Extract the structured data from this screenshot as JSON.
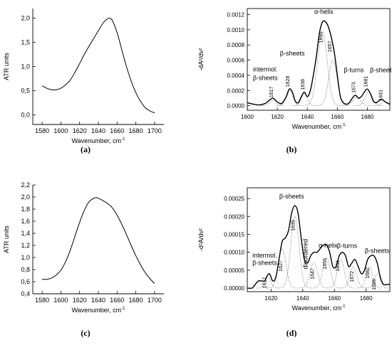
{
  "chart_data": [
    {
      "panel": "(a)",
      "type": "line",
      "xlabel": "Wavenumber, cm",
      "xlabel_sup": "-1",
      "ylabel": "ATR units",
      "xlim": [
        1570,
        1710
      ],
      "ylim": [
        -0.2,
        2.2
      ],
      "xticks": [
        1580,
        1600,
        1620,
        1640,
        1660,
        1680,
        1700
      ],
      "yticks": [
        0.0,
        0.5,
        1.0,
        1.5,
        2.0
      ],
      "ytick_labels": [
        "0,0",
        "0,5",
        "1,0",
        "1,5",
        "2,0"
      ],
      "series": [
        {
          "style": "solid",
          "x": [
            1580,
            1585,
            1590,
            1595,
            1600,
            1605,
            1610,
            1615,
            1620,
            1625,
            1630,
            1635,
            1640,
            1645,
            1650,
            1652,
            1655,
            1660,
            1665,
            1670,
            1675,
            1680,
            1685,
            1690,
            1695,
            1700
          ],
          "y": [
            0.6,
            0.55,
            0.52,
            0.52,
            0.55,
            0.62,
            0.72,
            0.88,
            1.06,
            1.25,
            1.42,
            1.58,
            1.74,
            1.9,
            1.99,
            2.0,
            1.95,
            1.7,
            1.35,
            1.0,
            0.7,
            0.46,
            0.28,
            0.15,
            0.08,
            0.04
          ]
        }
      ]
    },
    {
      "panel": "(b)",
      "type": "line",
      "xlabel": "Wavenumber, cm",
      "xlabel_sup": "-1",
      "ylabel": "-dA²/dν²",
      "xlim": [
        1600,
        1695
      ],
      "ylim": [
        -6e-05,
        0.00128
      ],
      "xticks": [
        1600,
        1620,
        1640,
        1660,
        1680
      ],
      "yticks": [
        0.0,
        0.0002,
        0.0004,
        0.0006,
        0.0008,
        0.001,
        0.0012
      ],
      "ytick_labels": [
        "0.0000",
        "0.0002",
        "0.0004",
        "0.0006",
        "0.0008",
        "0.0010",
        "0.0012"
      ],
      "series": [
        {
          "style": "solid",
          "x": [
            1600,
            1604,
            1608,
            1612,
            1614,
            1617,
            1620,
            1623,
            1626,
            1628,
            1630,
            1632,
            1634,
            1636,
            1638,
            1640,
            1642,
            1644,
            1646,
            1648,
            1650,
            1652,
            1654,
            1656,
            1658,
            1660,
            1662,
            1664,
            1666,
            1668,
            1670,
            1672,
            1674,
            1676,
            1678,
            1680,
            1682,
            1684,
            1686,
            1688,
            1690,
            1692,
            1695
          ],
          "y": [
            4e-05,
            2e-05,
            1e-05,
            3e-05,
            6e-05,
            0.0001,
            5e-05,
            3e-05,
            0.00012,
            0.00022,
            0.00018,
            6e-05,
            4e-05,
            0.00012,
            0.00018,
            0.00012,
            0.0002,
            0.0004,
            0.00065,
            0.00095,
            0.0011,
            0.00111,
            0.00104,
            0.0009,
            0.0007,
            0.0004,
            0.00012,
            4e-05,
            2e-05,
            4e-05,
            0.0001,
            0.00014,
            0.0001,
            0.00012,
            0.00018,
            0.00022,
            0.00016,
            6e-05,
            4e-05,
            7e-05,
            8e-05,
            5e-05,
            2e-05
          ]
        }
      ],
      "component_peaks": [
        {
          "center": 1617,
          "height": 7e-05,
          "sigma": 2.0
        },
        {
          "center": 1628,
          "height": 0.00021,
          "sigma": 2.2
        },
        {
          "center": 1638,
          "height": 0.00016,
          "sigma": 2.0
        },
        {
          "center": 1650,
          "height": 0.00098,
          "sigma": 3.2
        },
        {
          "center": 1657,
          "height": 0.0006,
          "sigma": 2.8
        },
        {
          "center": 1673,
          "height": 0.00012,
          "sigma": 2.5
        },
        {
          "center": 1681,
          "height": 0.00018,
          "sigma": 2.5
        },
        {
          "center": 1691,
          "height": 6e-05,
          "sigma": 1.8
        }
      ],
      "peak_labels": [
        {
          "text": "1617",
          "x": 1617,
          "y": 0.00018
        },
        {
          "text": "1628",
          "x": 1628,
          "y": 0.00032
        },
        {
          "text": "1638",
          "x": 1638,
          "y": 0.00028
        },
        {
          "text": "1650",
          "x": 1650,
          "y": 0.0009
        },
        {
          "text": "1657",
          "x": 1656,
          "y": 0.00078
        },
        {
          "text": "1673",
          "x": 1672,
          "y": 0.00024
        },
        {
          "text": "1681",
          "x": 1680,
          "y": 0.00032
        },
        {
          "text": "1691",
          "x": 1690,
          "y": 0.00014
        }
      ],
      "annotations": [
        {
          "text": "α-helix",
          "x": 1651,
          "y": 0.00121
        },
        {
          "text": "β-sheets",
          "x": 1630,
          "y": 0.00066
        },
        {
          "text": "β-turns",
          "x": 1671,
          "y": 0.00044
        },
        {
          "text": "β-sheets",
          "x": 1690,
          "y": 0.00044
        },
        {
          "text": "intermol.",
          "x": 1612,
          "y": 0.00045
        },
        {
          "text": "β-sheets",
          "x": 1612,
          "y": 0.00034
        }
      ]
    },
    {
      "panel": "(c)",
      "type": "line",
      "xlabel": "Wavenumber, cm",
      "xlabel_sup": "-1",
      "ylabel": "ATR units",
      "xlim": [
        1570,
        1710
      ],
      "ylim": [
        0.4,
        2.2
      ],
      "xticks": [
        1580,
        1600,
        1620,
        1640,
        1660,
        1680,
        1700
      ],
      "yticks": [
        0.4,
        0.6,
        0.8,
        1.0,
        1.2,
        1.4,
        1.6,
        1.8,
        2.0,
        2.2
      ],
      "ytick_labels": [
        "0,4",
        "0,6",
        "0,8",
        "1,0",
        "1,2",
        "1,4",
        "1,6",
        "1,8",
        "2,0",
        "2,2"
      ],
      "series": [
        {
          "style": "solid",
          "x": [
            1580,
            1585,
            1590,
            1595,
            1600,
            1605,
            1610,
            1615,
            1620,
            1625,
            1630,
            1635,
            1638,
            1640,
            1645,
            1650,
            1655,
            1660,
            1665,
            1670,
            1675,
            1680,
            1685,
            1690,
            1695,
            1700
          ],
          "y": [
            0.64,
            0.64,
            0.66,
            0.71,
            0.79,
            0.93,
            1.12,
            1.35,
            1.58,
            1.78,
            1.92,
            1.98,
            1.99,
            1.98,
            1.94,
            1.89,
            1.82,
            1.7,
            1.55,
            1.38,
            1.2,
            1.03,
            0.88,
            0.75,
            0.65,
            0.57
          ]
        }
      ]
    },
    {
      "panel": "(d)",
      "type": "line",
      "xlabel": "Wavenumber, cm",
      "xlabel_sup": "-1",
      "ylabel": "-d²A/dν²",
      "xlim": [
        1605,
        1695
      ],
      "ylim": [
        -1e-05,
        0.00028
      ],
      "xticks": [
        1620,
        1640,
        1660,
        1680
      ],
      "yticks": [
        0.0,
        5e-05,
        0.0001,
        0.00015,
        0.0002,
        0.00025
      ],
      "ytick_labels": [
        "0.00000",
        "0.00005",
        "0.00010",
        "0.00015",
        "0.00020",
        "0.00025"
      ],
      "series": [
        {
          "style": "solid",
          "x": [
            1605,
            1608,
            1610,
            1612,
            1614,
            1616,
            1617,
            1619,
            1621,
            1623,
            1625,
            1627,
            1629,
            1631,
            1633,
            1635,
            1637,
            1639,
            1641,
            1643,
            1645,
            1647,
            1649,
            1651,
            1653,
            1655,
            1657,
            1659,
            1661,
            1663,
            1665,
            1667,
            1669,
            1671,
            1673,
            1675,
            1677,
            1679,
            1681,
            1683,
            1685,
            1687,
            1689,
            1691,
            1693,
            1695
          ],
          "y": [
            0.0,
            0.0,
            1e-05,
            2e-05,
            2e-05,
            2e-05,
            3e-05,
            4e-05,
            2e-05,
            3e-05,
            8e-05,
            0.00013,
            0.00014,
            0.00016,
            0.00021,
            0.00023,
            0.00021,
            0.00014,
            8e-05,
            7e-05,
            9e-05,
            0.0001,
            0.0001,
            0.00011,
            0.00012,
            0.00012,
            0.0001,
            6e-05,
            6e-05,
            9e-05,
            0.0001,
            9e-05,
            6e-05,
            7e-05,
            8e-05,
            6e-05,
            4e-05,
            5e-05,
            8e-05,
            9e-05,
            9e-05,
            7e-05,
            3e-05,
            1e-05,
            1e-05,
            1e-05
          ]
        }
      ],
      "component_peaks": [
        {
          "center": 1612,
          "height": 2e-05,
          "sigma": 1.6
        },
        {
          "center": 1618,
          "height": 3e-05,
          "sigma": 1.8
        },
        {
          "center": 1627,
          "height": 0.00011,
          "sigma": 2.4
        },
        {
          "center": 1635,
          "height": 0.0002,
          "sigma": 2.6
        },
        {
          "center": 1647,
          "height": 7e-05,
          "sigma": 2.4
        },
        {
          "center": 1655,
          "height": 8.5e-05,
          "sigma": 2.4
        },
        {
          "center": 1664,
          "height": 8e-05,
          "sigma": 2.2
        },
        {
          "center": 1672,
          "height": 6e-05,
          "sigma": 2.2
        },
        {
          "center": 1682,
          "height": 6e-05,
          "sigma": 2.0
        },
        {
          "center": 1687,
          "height": 4e-05,
          "sigma": 1.8
        }
      ],
      "peak_labels": [
        {
          "text": "1617",
          "x": 1617,
          "y": 1.5e-05
        },
        {
          "text": "1627",
          "x": 1627,
          "y": 6.2e-05
        },
        {
          "text": "1635",
          "x": 1635,
          "y": 0.000175
        },
        {
          "text": "1647",
          "x": 1647,
          "y": 4e-05
        },
        {
          "text": "1655",
          "x": 1655,
          "y": 6.8e-05
        },
        {
          "text": "1664",
          "x": 1663,
          "y": 6.2e-05
        },
        {
          "text": "1672",
          "x": 1672,
          "y": 3.2e-05
        },
        {
          "text": "1682",
          "x": 1682,
          "y": 4.2e-05
        },
        {
          "text": "1686",
          "x": 1686,
          "y": 1e-05
        }
      ],
      "annotations": [
        {
          "text": "β-sheets",
          "x": 1633,
          "y": 0.00025
        },
        {
          "text": "disordered",
          "x": 1643,
          "y": 9.5e-05,
          "rotate": true
        },
        {
          "text": "α-helix",
          "x": 1656,
          "y": 0.000113
        },
        {
          "text": "β-turns",
          "x": 1668,
          "y": 0.000112
        },
        {
          "text": "β-sheets",
          "x": 1687,
          "y": 9.8e-05
        },
        {
          "text": "intermol.",
          "x": 1616,
          "y": 8.5e-05
        },
        {
          "text": "β-sheets",
          "x": 1616,
          "y": 6.4e-05
        }
      ]
    }
  ]
}
